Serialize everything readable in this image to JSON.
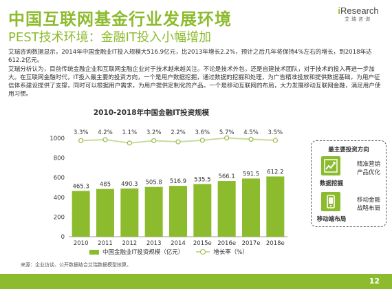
{
  "header": {
    "title": "中国互联网基金行业发展环境",
    "subtitle": "PEST技术环境：金融IT投入小幅增加"
  },
  "logo": {
    "brand_i": "i",
    "brand_rest": "Research",
    "cn": "艾瑞咨询"
  },
  "bullets": [
    "艾瑞咨询数据显示，2014年中国金融业IT投入规模大516.9亿元，比2013年增长2.2%，预计之后几年将保持4%左右的增长，到2018年达612.2亿元。",
    "艾瑞分析认为，目前传统金融企业和互联网金融企业对于技术越来越关注。不论是技术外包，还是自建技术团队，对于技术的投入再进一步加大。在互联网金融时代，IT投入最主要的投资方向，一个是用户数据挖掘，通过数据的挖掘和处理，为广告精准投放和提供数据基础。为用户征信体系建设提供了支撑，同时可以根据用户需求，为用户提供定制化的产品。一个是移动互联网的布局，大力发展移动互联网金融，满足用户使用习惯。"
  ],
  "chart_data": {
    "type": "bar",
    "title": "2010-2018年中国金融IT投资规模",
    "categories": [
      "2010",
      "2011",
      "2012",
      "2013",
      "2014",
      "2015e",
      "2016e",
      "2017e",
      "2018e"
    ],
    "series": [
      {
        "name": "中国金融业IT投资规模（亿元）",
        "type": "bar",
        "values": [
          465.3,
          485,
          490.3,
          505.8,
          516.9,
          535.5,
          566.1,
          591.5,
          612.2
        ]
      },
      {
        "name": "增长率（%）",
        "type": "line",
        "values": [
          3.3,
          4.2,
          1.1,
          3.2,
          2.2,
          3.6,
          5.7,
          4.5,
          3.5
        ]
      }
    ],
    "y_ticks": [
      "0",
      "200",
      "400",
      "600",
      "800",
      "1000"
    ],
    "ylim": [
      0,
      1000
    ],
    "growth_labels": [
      "3.3%",
      "4.2%",
      "1.1%",
      "3.2%",
      "2.2%",
      "3.6%",
      "5.7%",
      "4.5%",
      "3.5%"
    ],
    "colors": {
      "bar": "#8dbb2e",
      "line": "#c8dc9a",
      "marker": "#9ab84a"
    },
    "legend": "bottom"
  },
  "side_panel": {
    "title": "最主要投资方向",
    "items": [
      {
        "name": "数据挖掘",
        "desc1": "精准营销",
        "desc2": "产品优化",
        "icon": "chart-trend-icon"
      },
      {
        "name": "移动端布局",
        "desc1": "移动金融",
        "desc2": "战略布局",
        "icon": "mobile-icon"
      }
    ]
  },
  "source": "来源：企业访谈、公开数据结合艾瑞数据模型核算。",
  "page_number": "12"
}
